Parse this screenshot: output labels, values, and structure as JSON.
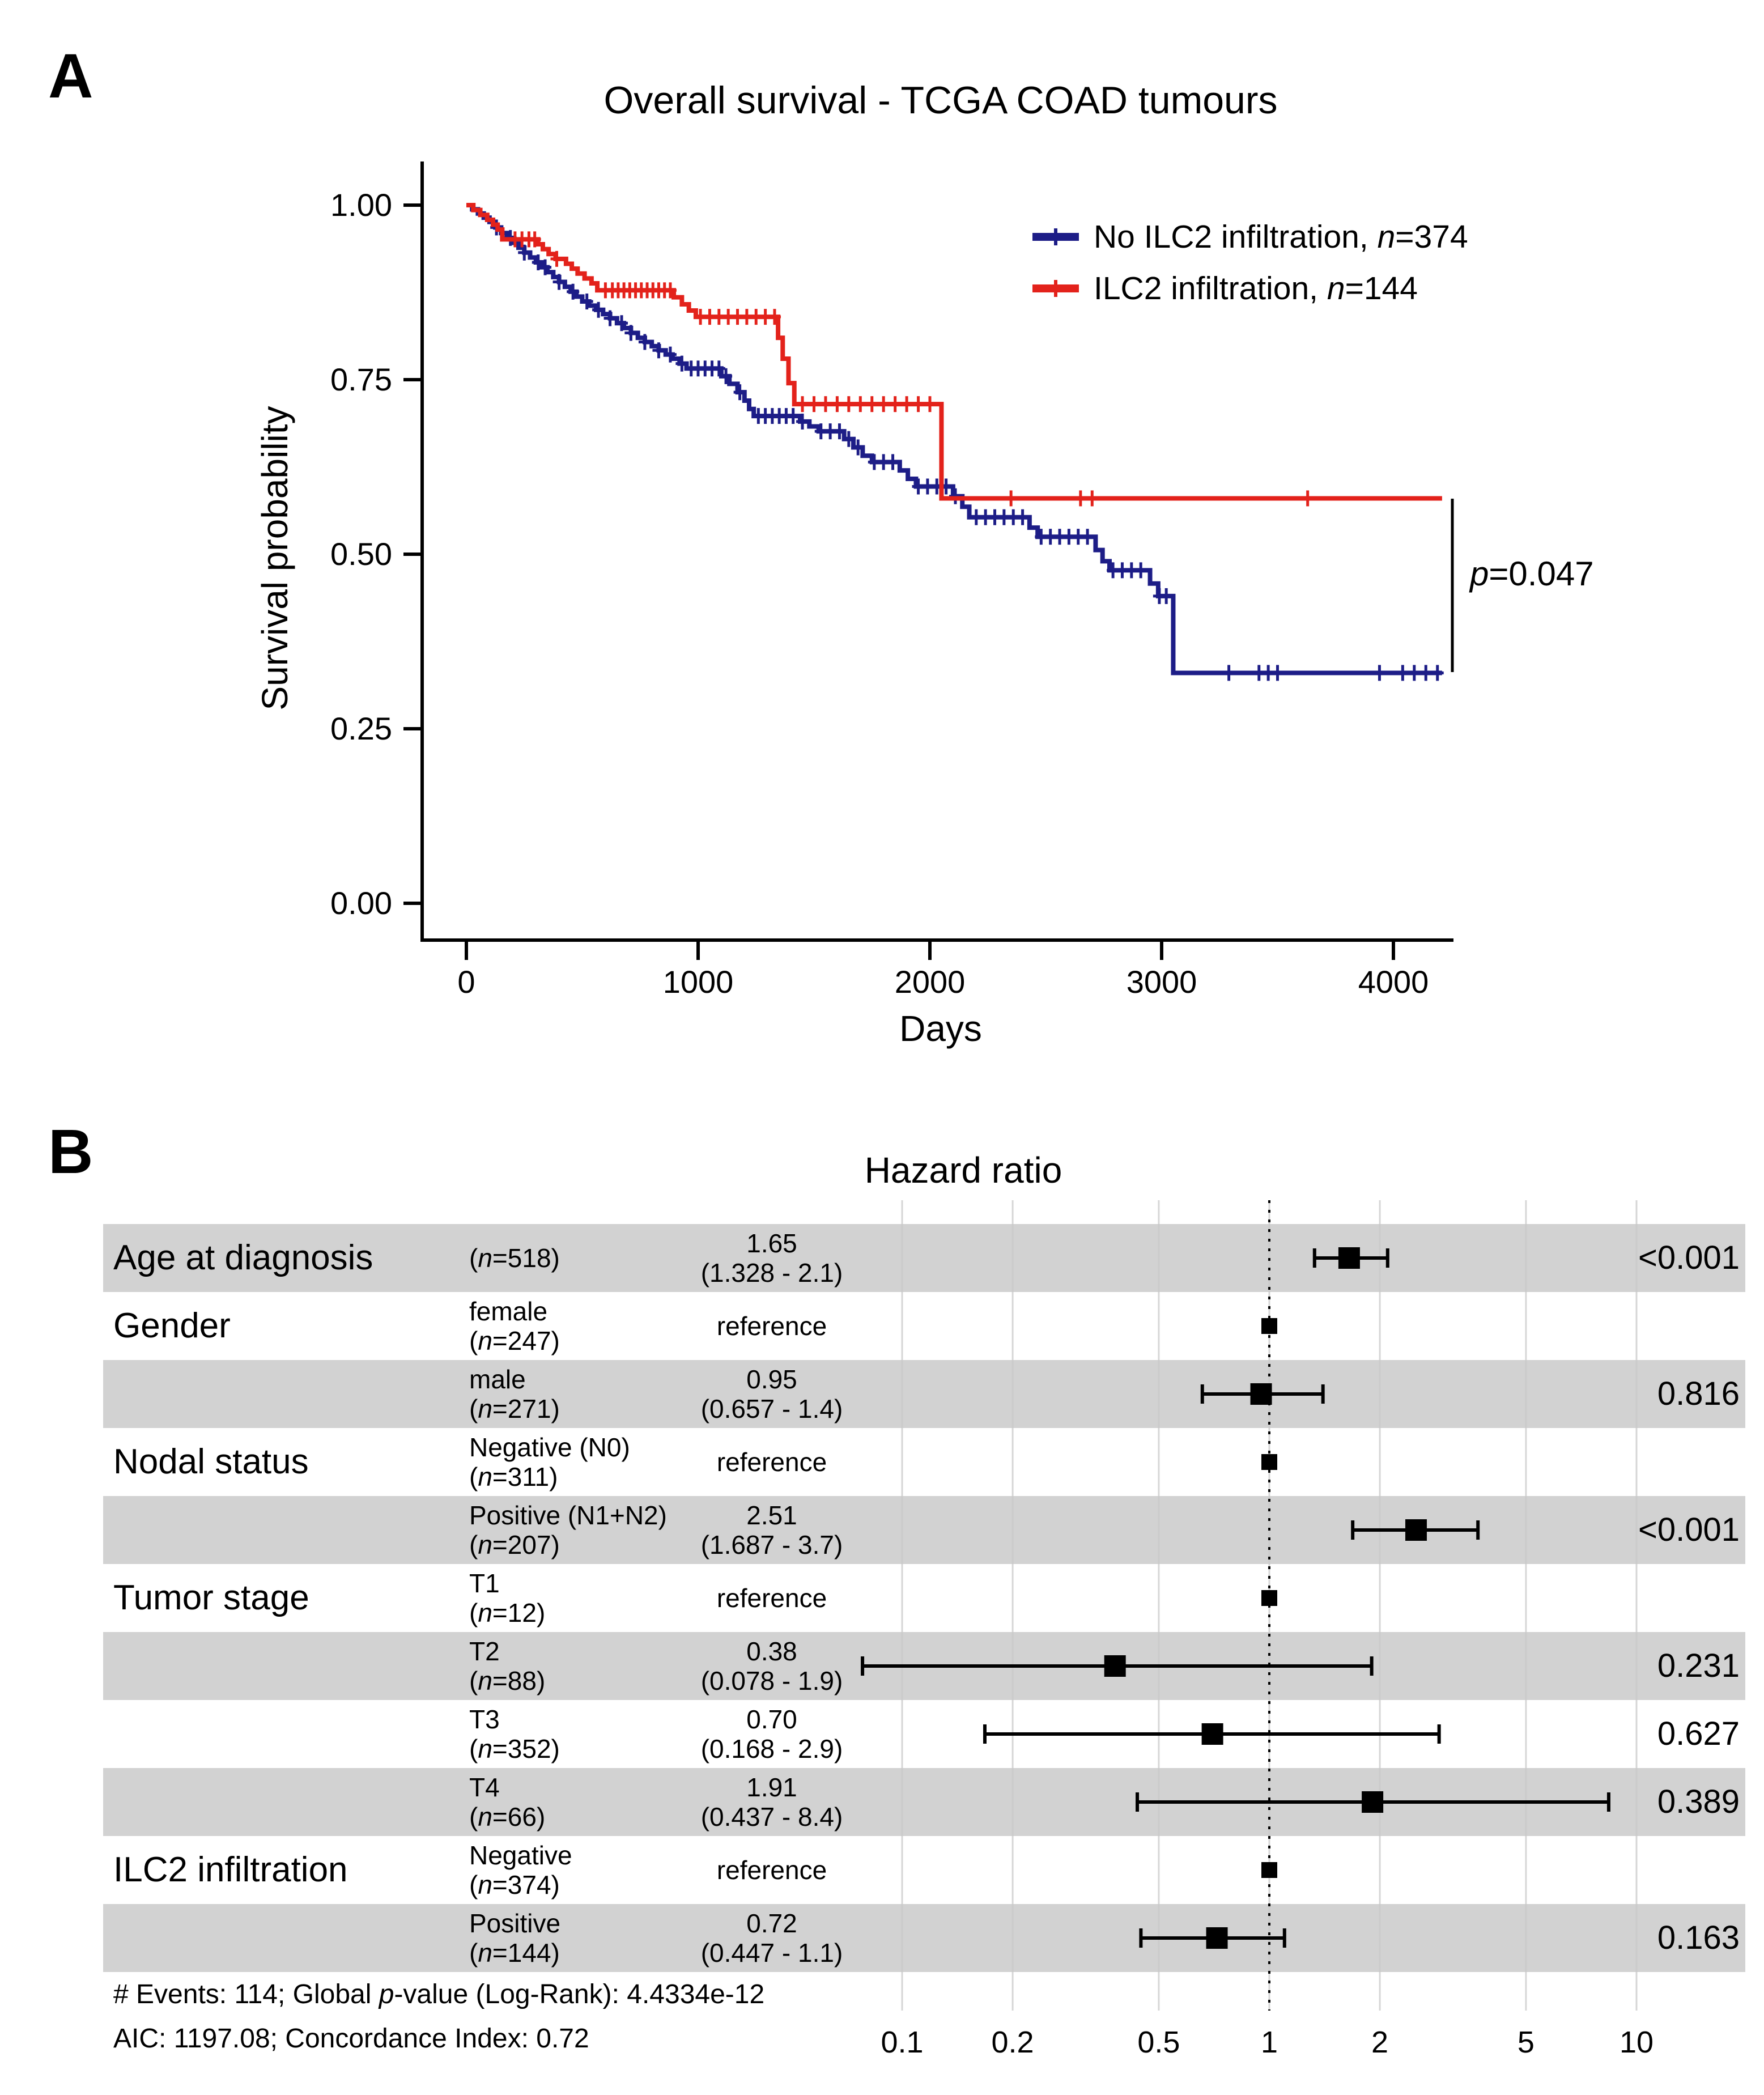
{
  "figure": {
    "panel_a": {
      "panel_label": "A",
      "legend": [
        {
          "label": "No ILC2 infiltration, n=374",
          "color": "#1d1d87"
        },
        {
          "label": "ILC2 infiltration, n=144",
          "color": "#e3221b"
        }
      ]
    },
    "panel_b": {
      "panel_label": "B"
    },
    "colors": {
      "no_ilc2": "#1d1d87",
      "ilc2": "#e3221b",
      "row_shade": "#d2d2d2",
      "gridline": "#c9c9c9",
      "axis": "#000000"
    }
  },
  "chart_data": [
    {
      "type": "line",
      "subtype": "kaplan-meier",
      "title": "Overall survival - TCGA COAD tumours",
      "xlabel": "Days",
      "ylabel": "Survival probability",
      "xlim": [
        0,
        4250
      ],
      "ylim": [
        0,
        1.0
      ],
      "x_ticks": [
        0,
        1000,
        2000,
        3000,
        4000
      ],
      "y_ticks": [
        1.0,
        0.75,
        0.5,
        0.25,
        0.0
      ],
      "y_tick_labels": [
        "1.00",
        "0.75",
        "0.50",
        "0.25",
        "0.00"
      ],
      "annotation": "p=0.047",
      "grid": false,
      "legend_position": "top-right",
      "series": [
        {
          "name": "No ILC2 infiltration, n=374",
          "n": 374,
          "color": "#1d1d87",
          "steps": [
            [
              0,
              1.0
            ],
            [
              25,
              0.994
            ],
            [
              50,
              0.988
            ],
            [
              75,
              0.982
            ],
            [
              100,
              0.976
            ],
            [
              125,
              0.968
            ],
            [
              150,
              0.96
            ],
            [
              175,
              0.953
            ],
            [
              200,
              0.946
            ],
            [
              225,
              0.939
            ],
            [
              250,
              0.932
            ],
            [
              275,
              0.925
            ],
            [
              300,
              0.918
            ],
            [
              325,
              0.911
            ],
            [
              350,
              0.904
            ],
            [
              375,
              0.897
            ],
            [
              400,
              0.89
            ],
            [
              425,
              0.883
            ],
            [
              450,
              0.876
            ],
            [
              475,
              0.869
            ],
            [
              500,
              0.862
            ],
            [
              530,
              0.856
            ],
            [
              560,
              0.85
            ],
            [
              590,
              0.844
            ],
            [
              620,
              0.838
            ],
            [
              650,
              0.831
            ],
            [
              680,
              0.824
            ],
            [
              710,
              0.817
            ],
            [
              740,
              0.81
            ],
            [
              770,
              0.804
            ],
            [
              800,
              0.798
            ],
            [
              830,
              0.792
            ],
            [
              860,
              0.786
            ],
            [
              890,
              0.78
            ],
            [
              920,
              0.773
            ],
            [
              950,
              0.766
            ],
            [
              1100,
              0.755
            ],
            [
              1135,
              0.744
            ],
            [
              1170,
              0.732
            ],
            [
              1200,
              0.72
            ],
            [
              1220,
              0.708
            ],
            [
              1240,
              0.698
            ],
            [
              1440,
              0.69
            ],
            [
              1480,
              0.683
            ],
            [
              1520,
              0.676
            ],
            [
              1630,
              0.665
            ],
            [
              1670,
              0.653
            ],
            [
              1710,
              0.641
            ],
            [
              1750,
              0.632
            ],
            [
              1870,
              0.62
            ],
            [
              1905,
              0.608
            ],
            [
              1940,
              0.597
            ],
            [
              2100,
              0.583
            ],
            [
              2140,
              0.568
            ],
            [
              2170,
              0.553
            ],
            [
              2430,
              0.538
            ],
            [
              2465,
              0.525
            ],
            [
              2715,
              0.506
            ],
            [
              2745,
              0.49
            ],
            [
              2775,
              0.477
            ],
            [
              2950,
              0.458
            ],
            [
              2985,
              0.44
            ],
            [
              3050,
              0.33
            ],
            [
              4210,
              0.33
            ]
          ],
          "censors": [
            130,
            190,
            250,
            310,
            340,
            400,
            460,
            520,
            570,
            620,
            670,
            710,
            770,
            830,
            880,
            930,
            970,
            1000,
            1030,
            1060,
            1090,
            1120,
            1180,
            1260,
            1290,
            1320,
            1350,
            1380,
            1410,
            1450,
            1530,
            1570,
            1610,
            1650,
            1690,
            1760,
            1800,
            1840,
            1950,
            1990,
            2030,
            2070,
            2110,
            2200,
            2240,
            2280,
            2320,
            2360,
            2400,
            2480,
            2520,
            2560,
            2600,
            2640,
            2680,
            2790,
            2830,
            2870,
            2910,
            2990,
            3020,
            3290,
            3420,
            3460,
            3500,
            3940,
            4040,
            4090,
            4140,
            4190
          ]
        },
        {
          "name": "ILC2 infiltration, n=144",
          "n": 144,
          "color": "#e3221b",
          "steps": [
            [
              0,
              1.0
            ],
            [
              30,
              0.993
            ],
            [
              60,
              0.986
            ],
            [
              90,
              0.979
            ],
            [
              115,
              0.972
            ],
            [
              135,
              0.965
            ],
            [
              155,
              0.951
            ],
            [
              310,
              0.944
            ],
            [
              330,
              0.937
            ],
            [
              355,
              0.93
            ],
            [
              385,
              0.923
            ],
            [
              430,
              0.916
            ],
            [
              455,
              0.909
            ],
            [
              480,
              0.902
            ],
            [
              510,
              0.895
            ],
            [
              540,
              0.888
            ],
            [
              565,
              0.878
            ],
            [
              895,
              0.868
            ],
            [
              930,
              0.858
            ],
            [
              960,
              0.849
            ],
            [
              990,
              0.84
            ],
            [
              1345,
              0.81
            ],
            [
              1365,
              0.78
            ],
            [
              1390,
              0.745
            ],
            [
              1415,
              0.715
            ],
            [
              2050,
              0.58
            ],
            [
              4210,
              0.58
            ]
          ],
          "censors": [
            210,
            240,
            270,
            295,
            390,
            600,
            630,
            655,
            680,
            705,
            730,
            755,
            780,
            805,
            830,
            855,
            880,
            1010,
            1050,
            1090,
            1130,
            1170,
            1210,
            1250,
            1290,
            1330,
            1450,
            1500,
            1550,
            1600,
            1650,
            1700,
            1750,
            1800,
            1850,
            1900,
            1950,
            2000,
            2350,
            2650,
            2700,
            3630
          ]
        }
      ]
    },
    {
      "type": "scatter",
      "subtype": "forest-plot",
      "title": "Hazard ratio",
      "x_scale": "log",
      "x_ticks": [
        0.1,
        0.2,
        0.5,
        1,
        2,
        5,
        10
      ],
      "x_tick_labels": [
        "0.1",
        "0.2",
        "0.5",
        "1",
        "2",
        "5",
        "10"
      ],
      "reference_line": 1,
      "rows": [
        {
          "group": "Age at diagnosis",
          "level_lines": [
            "(n=518)"
          ],
          "hr_lines": [
            "1.65",
            "(1.328 - 2.1)"
          ],
          "hr": 1.65,
          "lo": 1.328,
          "hi": 2.1,
          "p": "<0.001",
          "shaded": true,
          "reference": false
        },
        {
          "group": "Gender",
          "level_lines": [
            "female",
            "(n=247)"
          ],
          "hr_lines": [
            "reference"
          ],
          "hr": 1,
          "p": "",
          "shaded": false,
          "reference": true
        },
        {
          "group": "",
          "level_lines": [
            "male",
            "(n=271)"
          ],
          "hr_lines": [
            "0.95",
            "(0.657 - 1.4)"
          ],
          "hr": 0.95,
          "lo": 0.657,
          "hi": 1.4,
          "p": "0.816",
          "shaded": true,
          "reference": false
        },
        {
          "group": "Nodal status",
          "level_lines": [
            "Negative (N0)",
            "(n=311)"
          ],
          "hr_lines": [
            "reference"
          ],
          "hr": 1,
          "p": "",
          "shaded": false,
          "reference": true
        },
        {
          "group": "",
          "level_lines": [
            "Positive (N1+N2)",
            "(n=207)"
          ],
          "hr_lines": [
            "2.51",
            "(1.687 - 3.7)"
          ],
          "hr": 2.51,
          "lo": 1.687,
          "hi": 3.7,
          "p": "<0.001",
          "shaded": true,
          "reference": false
        },
        {
          "group": "Tumor stage",
          "level_lines": [
            "T1",
            "(n=12)"
          ],
          "hr_lines": [
            "reference"
          ],
          "hr": 1,
          "p": "",
          "shaded": false,
          "reference": true
        },
        {
          "group": "",
          "level_lines": [
            "T2",
            "(n=88)"
          ],
          "hr_lines": [
            "0.38",
            "(0.078 - 1.9)"
          ],
          "hr": 0.38,
          "lo": 0.078,
          "hi": 1.9,
          "p": "0.231",
          "shaded": true,
          "reference": false
        },
        {
          "group": "",
          "level_lines": [
            "T3",
            "(n=352)"
          ],
          "hr_lines": [
            "0.70",
            "(0.168 - 2.9)"
          ],
          "hr": 0.7,
          "lo": 0.168,
          "hi": 2.9,
          "p": "0.627",
          "shaded": false,
          "reference": false
        },
        {
          "group": "",
          "level_lines": [
            "T4",
            "(n=66)"
          ],
          "hr_lines": [
            "1.91",
            "(0.437 - 8.4)"
          ],
          "hr": 1.91,
          "lo": 0.437,
          "hi": 8.4,
          "p": "0.389",
          "shaded": true,
          "reference": false
        },
        {
          "group": "ILC2 infiltration",
          "level_lines": [
            "Negative",
            "(n=374)"
          ],
          "hr_lines": [
            "reference"
          ],
          "hr": 1,
          "p": "",
          "shaded": false,
          "reference": true
        },
        {
          "group": "",
          "level_lines": [
            "Positive",
            "(n=144)"
          ],
          "hr_lines": [
            "0.72",
            "(0.447 - 1.1)"
          ],
          "hr": 0.72,
          "lo": 0.447,
          "hi": 1.1,
          "p": "0.163",
          "shaded": true,
          "reference": false
        }
      ],
      "footnotes": [
        "# Events: 114; Global p-value (Log-Rank): 4.4334e-12",
        "AIC: 1197.08; Concordance Index: 0.72"
      ]
    }
  ]
}
